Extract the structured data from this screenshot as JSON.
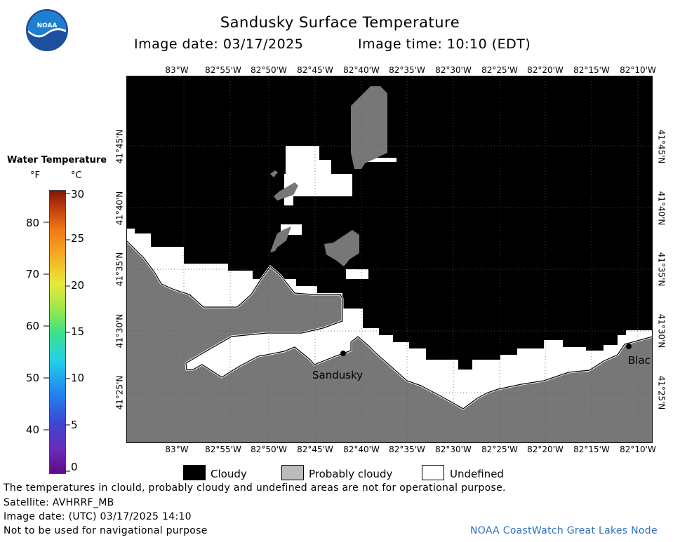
{
  "header": {
    "title": "Sandusky Surface Temperature",
    "image_date": "Image date: 03/17/2025",
    "image_time": "Image time: 10:10 (EDT)",
    "logo_text": "NOAA"
  },
  "longitude_ticks": [
    "83°W",
    "82°55'W",
    "82°50'W",
    "82°45'W",
    "82°40'W",
    "82°35'W",
    "82°30'W",
    "82°25'W",
    "82°20'W",
    "82°15'W",
    "82°10'W"
  ],
  "latitude_ticks": [
    "41°45'N",
    "41°40'N",
    "41°35'N",
    "41°30'N",
    "41°25'N"
  ],
  "map": {
    "place_labels": [
      "Sandusky",
      "Blac"
    ]
  },
  "colorbar": {
    "title": "Water Temperature",
    "unit_f": "°F",
    "unit_c": "°C",
    "f_ticks": [
      "80",
      "70",
      "60",
      "50",
      "40"
    ],
    "c_ticks": [
      "30",
      "25",
      "20",
      "15",
      "10",
      "5",
      "0"
    ],
    "c_range": [
      0,
      30
    ]
  },
  "legend": {
    "cloudy": "Cloudy",
    "probably_cloudy": "Probably cloudy",
    "undefined": "Undefined",
    "colors": {
      "cloudy": "#000000",
      "probably_cloudy": "#bbbbbb",
      "undefined": "#ffffff",
      "land": "#707070"
    }
  },
  "footer": {
    "disclaimer": "The temperatures in clould, probably cloudy and undefined areas are not for operational purpose.",
    "satellite": "Satellite: AVHRRF_MB",
    "utc_date": "Image date: (UTC) 03/17/2025  14:10",
    "nav_warning": "Not to be used for navigational purpose",
    "credit": "NOAA CoastWatch Great Lakes Node"
  }
}
